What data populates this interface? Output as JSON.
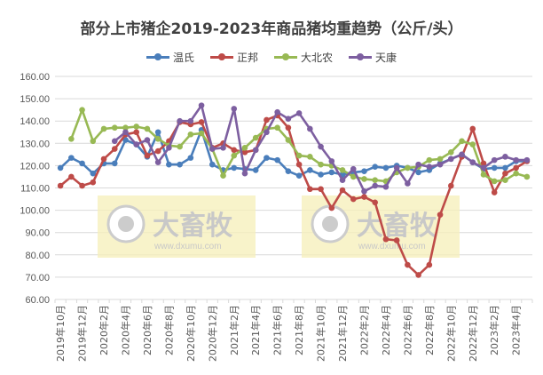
{
  "chart_data": {
    "type": "line",
    "title": "部分上市猪企2019-2023年商品猪均重趋势（公斤/头）",
    "xlabel": "",
    "ylabel": "",
    "ylim": [
      60,
      160
    ],
    "yticks": [
      "60.00",
      "70.00",
      "80.00",
      "90.00",
      "100.00",
      "110.00",
      "120.00",
      "130.00",
      "140.00",
      "150.00",
      "160.00"
    ],
    "x_tick_labels": [
      "2019年10月",
      "2019年12月",
      "2020年2月",
      "2020年4月",
      "2020年6月",
      "2020年8月",
      "2020年10月",
      "2020年12月",
      "2021年2月",
      "2021年4月",
      "2021年6月",
      "2021年8月",
      "2021年10月",
      "2021年12月",
      "2022年2月",
      "2022年4月",
      "2022年6月",
      "2022年8月",
      "2022年10月",
      "2022年12月",
      "2023年2月",
      "2023年4月"
    ],
    "x": [
      "2019-10",
      "2019-11",
      "2019-12",
      "2020-01",
      "2020-02",
      "2020-03",
      "2020-04",
      "2020-05",
      "2020-06",
      "2020-07",
      "2020-08",
      "2020-09",
      "2020-10",
      "2020-11",
      "2020-12",
      "2021-01",
      "2021-02",
      "2021-03",
      "2021-04",
      "2021-05",
      "2021-06",
      "2021-07",
      "2021-08",
      "2021-09",
      "2021-10",
      "2021-11",
      "2021-12",
      "2022-01",
      "2022-02",
      "2022-03",
      "2022-04",
      "2022-05",
      "2022-06",
      "2022-07",
      "2022-08",
      "2022-09",
      "2022-10",
      "2022-11",
      "2022-12",
      "2023-01",
      "2023-02",
      "2023-03",
      "2023-04",
      "2023-05"
    ],
    "grid": true,
    "legend_position": "top",
    "series": [
      {
        "name": "温氏",
        "color": "#4a7ebb",
        "values": [
          119,
          123.5,
          121,
          116.5,
          121,
          121,
          131.5,
          129.5,
          124,
          135,
          120.5,
          120.5,
          123.5,
          136,
          120.5,
          118,
          119,
          118.5,
          118,
          123.5,
          122.5,
          117.5,
          115.5,
          118,
          116,
          117,
          116,
          117,
          117.5,
          119.5,
          119,
          120,
          119,
          117,
          118,
          121,
          123,
          125,
          121.5,
          118.5,
          119,
          119,
          122,
          122
        ]
      },
      {
        "name": "正邦",
        "color": "#be4b48",
        "values": [
          111,
          115,
          111,
          112.5,
          123,
          127.5,
          134,
          135,
          124.5,
          126.5,
          131,
          139.5,
          138.5,
          139.5,
          128,
          130,
          127,
          126,
          127,
          140.5,
          142.5,
          137,
          120.5,
          109.5,
          109.5,
          101,
          109,
          105,
          106,
          103.5,
          87,
          86.5,
          75.5,
          71,
          75.5,
          98,
          111,
          124,
          136.5,
          121,
          108,
          116.5,
          119,
          122
        ]
      },
      {
        "name": "大北农",
        "color": "#98b954",
        "values": [
          null,
          132,
          145,
          131,
          136.5,
          137,
          137,
          137.5,
          136.5,
          132,
          129,
          128.5,
          134,
          134.5,
          127.5,
          115.5,
          124.5,
          128,
          132.5,
          136.5,
          137,
          131.5,
          124.5,
          124,
          120.5,
          120,
          118,
          115,
          114,
          113.5,
          113,
          117,
          119,
          119.5,
          122.5,
          123,
          126,
          131,
          129.5,
          116,
          113,
          113.5,
          116.5,
          115
        ]
      },
      {
        "name": "天康",
        "color": "#7d5fa0",
        "values": [
          null,
          null,
          null,
          null,
          null,
          131,
          135,
          129.5,
          131.5,
          121.5,
          128,
          140,
          140,
          147,
          127.5,
          128,
          145.5,
          116.5,
          127,
          135,
          144,
          141,
          143.5,
          136.5,
          128.5,
          122,
          113.5,
          118.5,
          108.5,
          111,
          110.5,
          119,
          112,
          120.5,
          119.5,
          120.5,
          123,
          125,
          121.5,
          119,
          122.5,
          124,
          122.5,
          122.5
        ]
      }
    ]
  },
  "watermark": {
    "brand": "大畜牧",
    "url": "www.dxumu.com"
  }
}
